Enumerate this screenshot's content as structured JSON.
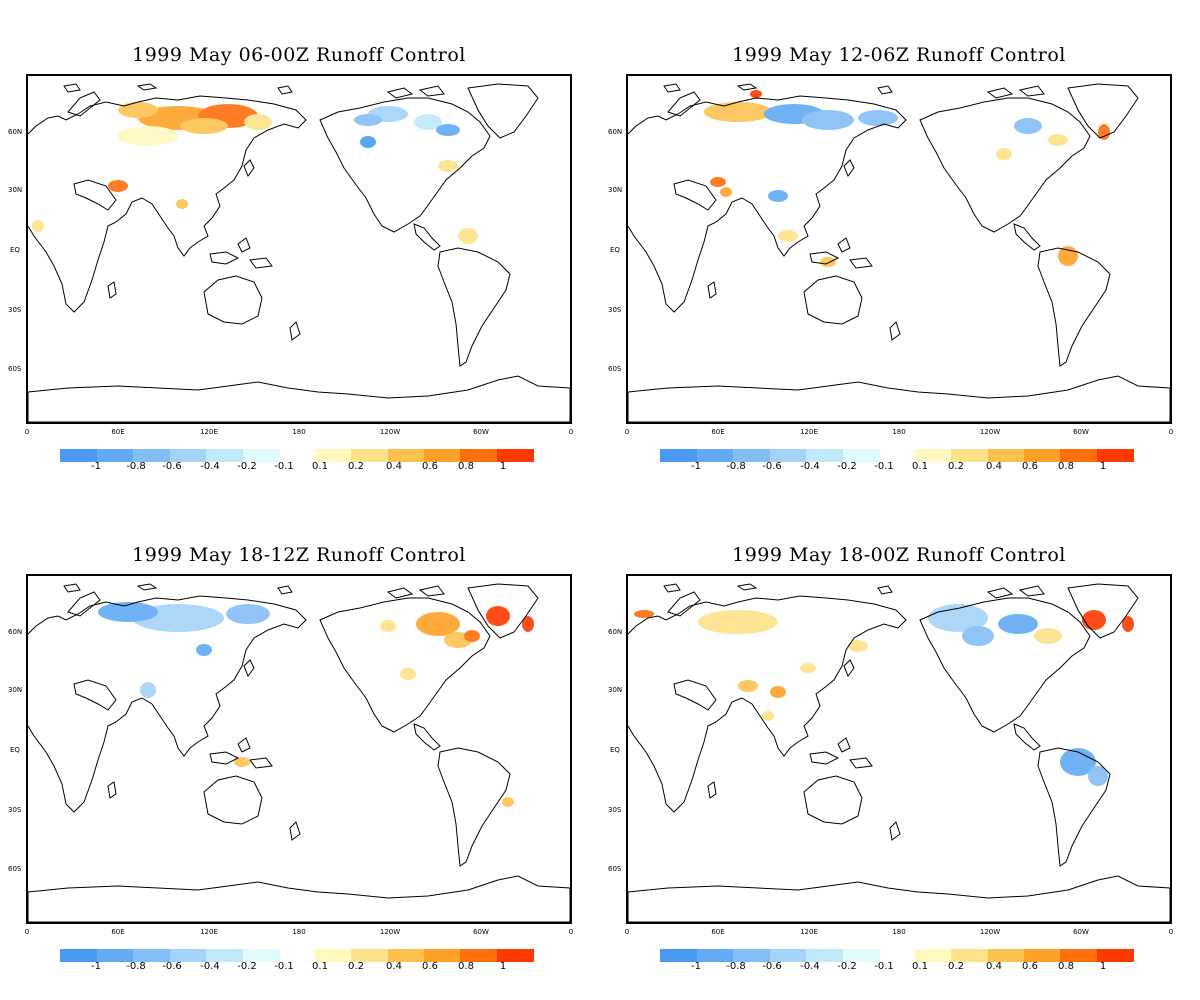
{
  "figure": {
    "panels": [
      {
        "id": "p1",
        "title": "1999 May 06-00Z Runoff Control"
      },
      {
        "id": "p2",
        "title": "1999 May 12-06Z Runoff Control"
      },
      {
        "id": "p3",
        "title": "1999 May 18-12Z Runoff Control"
      },
      {
        "id": "p4",
        "title": "1999 May 18-00Z Runoff Control"
      }
    ],
    "lat_ticks": [
      "60N",
      "30N",
      "EQ",
      "30S",
      "60S"
    ],
    "lon_ticks": [
      "0",
      "60E",
      "120E",
      "180",
      "120W",
      "60W",
      "0"
    ],
    "colorbar": {
      "negative_colors": [
        "#4a9af2",
        "#62aaf4",
        "#84bef6",
        "#a5d3f8",
        "#bfe9f8",
        "#e0fbfc"
      ],
      "positive_colors": [
        "#fff9c0",
        "#fee289",
        "#fdc150",
        "#fea129",
        "#fe6f0d",
        "#fe3a00"
      ],
      "labels": [
        "-1",
        "-0.8",
        "-0.6",
        "-0.4",
        "-0.2",
        "-0.1",
        "0.1",
        "0.2",
        "0.4",
        "0.6",
        "0.8",
        "1"
      ]
    }
  }
}
